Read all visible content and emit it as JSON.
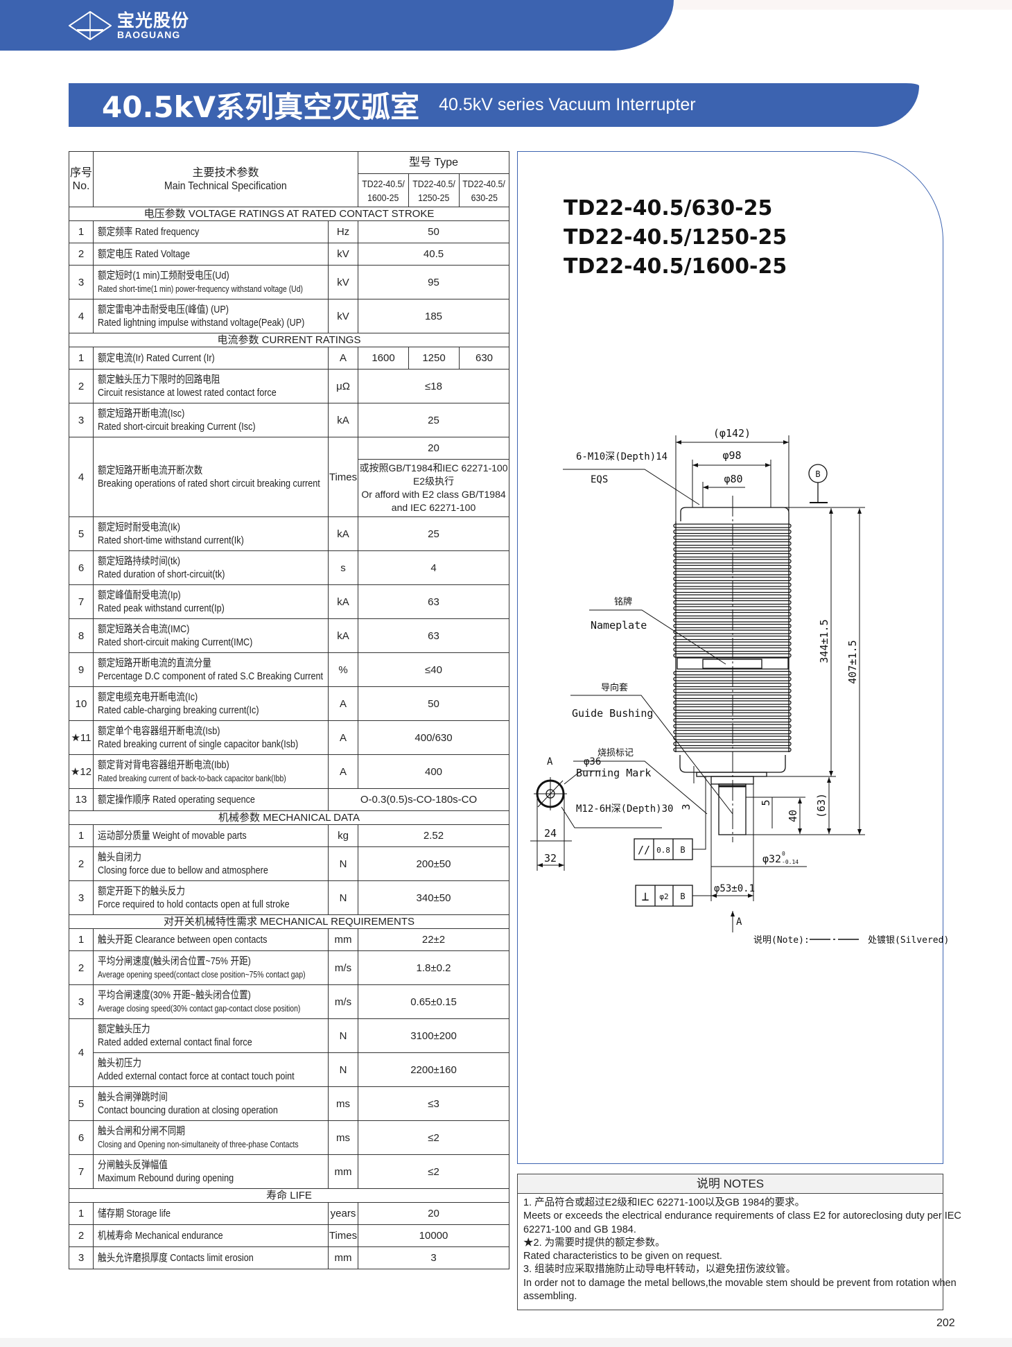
{
  "brand": {
    "name_cn": "宝光股份",
    "name_en": "BAOGUANG",
    "logo_mark_cn": "宝光"
  },
  "title": {
    "cn": "40.5kV系列真空灭弧室",
    "en": "40.5kV series Vacuum Interrupter"
  },
  "colors": {
    "brand_blue": "#3c63b0",
    "frame_blue": "#3c63b0"
  },
  "table": {
    "header": {
      "no_cn": "序号",
      "no_en": "No.",
      "spec_cn": "主要技术参数",
      "spec_en": "Main Technical Specification",
      "type_label": "型号  Type",
      "types": [
        [
          "TD22-40.5/",
          "1600-25"
        ],
        [
          "TD22-40.5/",
          "1250-25"
        ],
        [
          "TD22-40.5/",
          "630-25"
        ]
      ]
    },
    "sections": [
      {
        "title": "电压参数  VOLTAGE RATINGS AT RATED CONTACT STROKE",
        "rows": [
          {
            "no": "1",
            "cn": "额定频率 Rated frequency",
            "unit": "Hz",
            "value": "50"
          },
          {
            "no": "2",
            "cn": "额定电压 Rated Voltage",
            "unit": "kV",
            "value": "40.5"
          },
          {
            "no": "3",
            "cn": "额定短时(1 min)工频耐受电压(Ud)",
            "en": "Rated short-time(1 min) power-frequency withstand voltage (Ud)",
            "small": true,
            "unit": "kV",
            "value": "95"
          },
          {
            "no": "4",
            "cn": "额定雷电冲击耐受电压(峰值) (UP)",
            "en": "Rated lightning impulse withstand voltage(Peak) (UP)",
            "unit": "kV",
            "value": "185"
          }
        ]
      },
      {
        "title": "电流参数  CURRENT RATINGS",
        "rows": [
          {
            "no": "1",
            "cn": "额定电流(Ir) Rated Current (Ir)",
            "unit": "A",
            "values": [
              "1600",
              "1250",
              "630"
            ]
          },
          {
            "no": "2",
            "cn": "额定触头压力下限时的回路电阻",
            "en": "Circuit resistance at lowest rated contact force",
            "unit": "μΩ",
            "value": "≤18"
          },
          {
            "no": "3",
            "cn": "额定短路开断电流(Isc)",
            "en": "Rated short-circuit breaking Current (Isc)",
            "unit": "kA",
            "value": "25"
          },
          {
            "no": "4",
            "cn": "额定短路开断电流开断次数",
            "en": "Breaking operations of rated short circuit breaking current",
            "unit": "Times",
            "value": "20",
            "note": [
              "或按照GB/T1984和IEC 62271-100",
              "E2级执行",
              "Or afford with E2 class GB/T1984",
              "and IEC 62271-100"
            ]
          },
          {
            "no": "5",
            "cn": "额定短时耐受电流(Ik)",
            "en": "Rated short-time withstand current(Ik)",
            "unit": "kA",
            "value": "25"
          },
          {
            "no": "6",
            "cn": "额定短路持续时间(tk)",
            "en": "Rated duration of short-circuit(tk)",
            "unit": "s",
            "value": "4"
          },
          {
            "no": "7",
            "cn": "额定峰值耐受电流(Ip)",
            "en": "Rated peak withstand current(Ip)",
            "unit": "kA",
            "value": "63"
          },
          {
            "no": "8",
            "cn": "额定短路关合电流(IMC)",
            "en": "Rated short-circuit making Current(IMC)",
            "unit": "kA",
            "value": "63"
          },
          {
            "no": "9",
            "cn": "额定短路开断电流的直流分量",
            "en": "Percentage D.C component of rated S.C Breaking Current",
            "unit": "%",
            "value": "≤40"
          },
          {
            "no": "10",
            "cn": "额定电缆充电开断电流(Ic)",
            "en": "Rated cable-charging breaking current(Ic)",
            "unit": "A",
            "value": "50"
          },
          {
            "no": "★11",
            "cn": "额定单个电容器组开断电流(Isb)",
            "en": "Rated breaking current of single capacitor bank(Isb)",
            "unit": "A",
            "value": "400/630"
          },
          {
            "no": "★12",
            "cn": "额定背对背电容器组开断电流(Ibb)",
            "en": "Rated breaking current of back-to-back capacitor bank(Ibb)",
            "small": true,
            "unit": "A",
            "value": "400"
          },
          {
            "no": "13",
            "cn": "额定操作顺序 Rated operating sequence",
            "value": "O-0.3(0.5)s-CO-180s-CO",
            "span_unit": true
          }
        ]
      },
      {
        "title": "机械参数  MECHANICAL DATA",
        "rows": [
          {
            "no": "1",
            "cn": "运动部分质量 Weight of movable parts",
            "unit": "kg",
            "value": "2.52"
          },
          {
            "no": "2",
            "cn": "触头自闭力",
            "en": "Closing force due to bellow and atmosphere",
            "unit": "N",
            "value": "200±50"
          },
          {
            "no": "3",
            "cn": "额定开距下的触头反力",
            "en": "Force required to hold contacts open at full stroke",
            "unit": "N",
            "value": "340±50"
          }
        ]
      },
      {
        "title": "对开关机械特性需求  MECHANICAL REQUIREMENTS",
        "rows": [
          {
            "no": "1",
            "cn": "触头开距 Clearance between open contacts",
            "unit": "mm",
            "value": "22±2"
          },
          {
            "no": "2",
            "cn": "平均分闸速度(触头闭合位置~75% 开距)",
            "en": "Average opening speed(contact close position~75% contact gap)",
            "small": true,
            "unit": "m/s",
            "value": "1.8±0.2"
          },
          {
            "no": "3",
            "cn": "平均合闸速度(30% 开距~触头闭合位置)",
            "en": "Average closing speed(30% contact gap-contact close position)",
            "small": true,
            "unit": "m/s",
            "value": "0.65±0.15"
          },
          {
            "no": "4",
            "sub": [
              {
                "cn": "额定触头压力",
                "en": "Rated added external contact final force",
                "unit": "N",
                "value": "3100±200"
              },
              {
                "cn": "触头初压力",
                "en": "Added external contact force at contact touch point",
                "unit": "N",
                "value": "2200±160"
              }
            ]
          },
          {
            "no": "5",
            "cn": "触头合闸弹跳时间",
            "en": "Contact bouncing duration at closing operation",
            "unit": "ms",
            "value": "≤3"
          },
          {
            "no": "6",
            "cn": "触头合闸和分闸不同期",
            "en": "Closing and Opening non-simultaneity of three-phase Contacts",
            "small": true,
            "unit": "ms",
            "value": "≤2"
          },
          {
            "no": "7",
            "cn": "分闸触头反弹幅值",
            "en": "Maximum Rebound during opening",
            "unit": "mm",
            "value": "≤2"
          }
        ]
      },
      {
        "title": "寿命  LIFE",
        "rows": [
          {
            "no": "1",
            "cn": "储存期 Storage life",
            "unit": "years",
            "value": "20"
          },
          {
            "no": "2",
            "cn": "机械寿命 Mechanical endurance",
            "unit": "Times",
            "value": "10000"
          },
          {
            "no": "3",
            "cn": "触头允许磨损厚度 Contacts limit erosion",
            "unit": "mm",
            "value": "3"
          }
        ]
      }
    ]
  },
  "drawing": {
    "models": [
      "TD22-40.5/630-25",
      "TD22-40.5/1250-25",
      "TD22-40.5/1600-25"
    ],
    "dims": {
      "d142": "(φ142)",
      "d98": "φ98",
      "d80": "φ80",
      "h344": "344±1.5",
      "h407": "407±1.5",
      "h63": "(63)",
      "h40": "40",
      "h5": "5",
      "h3": "3",
      "d32": "φ32",
      "d32_tol_upper": "0",
      "d32_tol_lower": "-0.14",
      "d53": "φ53±0.1",
      "d36": "φ36",
      "w24": "24",
      "w32": "32"
    },
    "labels": {
      "thread_top": "6-M10深(Depth)14",
      "eqs": "EQS",
      "nameplate_cn": "铭牌",
      "nameplate_en": "Nameplate",
      "guide_cn": "导向套",
      "guide_en": "Guide Bushing",
      "burn_cn": "烧损标记",
      "burn_en": "Burning Mark",
      "thread_bottom": "M12-6H深(Depth)30",
      "datum_b": "B",
      "view_a": "A",
      "note_label": "说明(Note):",
      "note_text": "处镀银(Silvered)"
    },
    "tolerances": [
      {
        "symbol": "//",
        "value": "0.8",
        "datum": "B"
      },
      {
        "symbol": "⊥",
        "value": "φ2",
        "datum": "B"
      }
    ]
  },
  "notes": {
    "title": "说明  NOTES",
    "lines": [
      "1. 产品符合或超过E2级和IEC 62271-100以及GB 1984的要求。",
      "Meets or exceeds the electrical endurance requirements of class E2 for autoreclosing duty per IEC",
      "62271-100 and GB 1984.",
      "★2. 为需要时提供的额定参数。",
      "Rated characteristics to be given on request.",
      "3. 组装时应采取措施防止动导电杆转动，以避免扭伤波纹管。",
      "In order not to damage the metal bellows,the movable stem should be prevent from rotation when",
      "assembling."
    ]
  },
  "page_number": "202"
}
